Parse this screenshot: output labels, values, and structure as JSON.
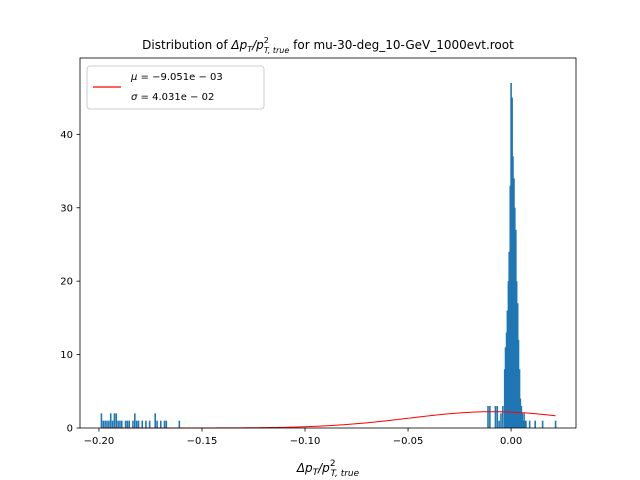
{
  "chart_data": {
    "type": "bar",
    "title": {
      "prefix": "Distribution of ",
      "math_main": "Δp",
      "math_sub": "T",
      "math_slash": "/p",
      "math_sup": "2",
      "math_sub2": "T, true",
      "suffix": " for mu-30-deg_10-GeV_1000evt.root"
    },
    "xlabel": {
      "math_main": "Δp",
      "math_sub": "T",
      "math_slash": "/p",
      "math_sup": "2",
      "math_sub2": "T, true"
    },
    "ylabel": "",
    "xlim": [
      -0.2092,
      0.0315
    ],
    "ylim": [
      0,
      50.4
    ],
    "xticks": [
      -0.2,
      -0.15,
      -0.1,
      -0.05,
      0.0
    ],
    "xtick_labels": [
      "−0.20",
      "−0.15",
      "−0.10",
      "−0.05",
      "0.00"
    ],
    "yticks": [
      0,
      10,
      20,
      30,
      40
    ],
    "ytick_labels": [
      "0",
      "10",
      "20",
      "30",
      "40"
    ],
    "grid": false,
    "legend_position": "top-left",
    "histogram": {
      "color": "#1f77b4",
      "bin_width": 0.00045,
      "bins": [
        [
          -0.1988,
          2
        ],
        [
          -0.1979,
          1
        ],
        [
          -0.197,
          1
        ],
        [
          -0.1961,
          1
        ],
        [
          -0.1952,
          1
        ],
        [
          -0.1943,
          2
        ],
        [
          -0.1934,
          1
        ],
        [
          -0.1925,
          2
        ],
        [
          -0.1916,
          2
        ],
        [
          -0.1907,
          1
        ],
        [
          -0.1898,
          1
        ],
        [
          -0.1889,
          1
        ],
        [
          -0.1871,
          1
        ],
        [
          -0.1862,
          1
        ],
        [
          -0.1853,
          1
        ],
        [
          -0.1835,
          1
        ],
        [
          -0.1826,
          2
        ],
        [
          -0.1817,
          1
        ],
        [
          -0.1808,
          1
        ],
        [
          -0.179,
          1
        ],
        [
          -0.1772,
          1
        ],
        [
          -0.1754,
          1
        ],
        [
          -0.1727,
          2
        ],
        [
          -0.1718,
          1
        ],
        [
          -0.17,
          1
        ],
        [
          -0.1682,
          1
        ],
        [
          -0.1673,
          1
        ],
        [
          -0.161,
          1
        ],
        [
          -0.0112,
          3
        ],
        [
          -0.0103,
          3
        ],
        [
          -0.0076,
          3
        ],
        [
          -0.0067,
          3
        ],
        [
          -0.0058,
          1
        ],
        [
          -0.0049,
          2
        ],
        [
          -0.004,
          3
        ],
        [
          -0.0031,
          8
        ],
        [
          -0.0027,
          11
        ],
        [
          -0.0022,
          13
        ],
        [
          -0.0018,
          16
        ],
        [
          -0.0013,
          20
        ],
        [
          -0.0009,
          24
        ],
        [
          -0.0004,
          33
        ],
        [
          0.0,
          47
        ],
        [
          0.0005,
          45
        ],
        [
          0.0009,
          37
        ],
        [
          0.0014,
          34
        ],
        [
          0.0018,
          30
        ],
        [
          0.0023,
          27
        ],
        [
          0.0027,
          20
        ],
        [
          0.0032,
          17
        ],
        [
          0.0036,
          12
        ],
        [
          0.0041,
          8
        ],
        [
          0.0045,
          4
        ],
        [
          0.005,
          3
        ],
        [
          0.0054,
          2
        ],
        [
          0.0059,
          1
        ],
        [
          0.0063,
          2
        ],
        [
          0.0068,
          1
        ],
        [
          0.0072,
          1
        ],
        [
          0.009,
          1
        ],
        [
          0.0117,
          1
        ],
        [
          0.0153,
          1
        ],
        [
          0.0216,
          1
        ]
      ]
    },
    "fit": {
      "color": "#ff0000",
      "mu": -0.009051,
      "sigma": 0.04031,
      "amplitude": 2.22,
      "x_range": [
        -0.1988,
        0.0216
      ]
    },
    "legend": {
      "line1": {
        "prefix": "μ",
        "value": " = −9.051e − 03"
      },
      "line2": {
        "prefix": "σ",
        "value": " = 4.031e − 02"
      }
    }
  }
}
